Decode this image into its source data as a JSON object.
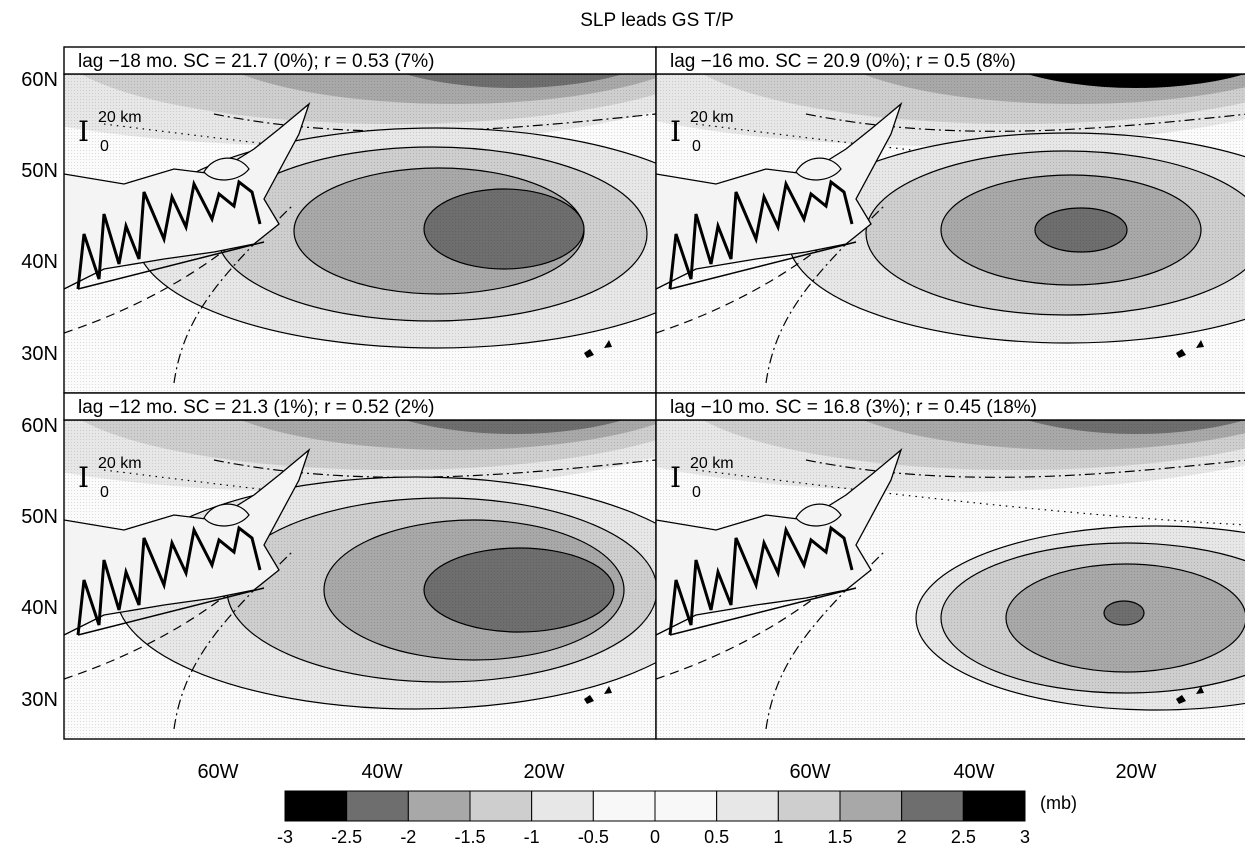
{
  "chart_data": {
    "type": "heatmap",
    "title": "SLP leads GS T/P",
    "x_ticks": [
      "60W",
      "40W",
      "20W"
    ],
    "y_ticks": [
      "60N",
      "50N",
      "40N",
      "30N"
    ],
    "scale_bar": {
      "top": "20 km",
      "bottom": "0"
    },
    "colorbar": {
      "unit": "(mb)",
      "ticks": [
        "-3",
        "-2.5",
        "-2",
        "-1.5",
        "-1",
        "-0.5",
        "0",
        "0.5",
        "1",
        "1.5",
        "2",
        "2.5",
        "3"
      ],
      "range": [
        -3,
        3
      ],
      "step": 0.5,
      "colors": [
        "#000000",
        "#6e6e6e",
        "#a8a8a8",
        "#cecece",
        "#e7e7e7",
        "#f8f8f8",
        "#f8f8f8",
        "#e7e7e7",
        "#cecece",
        "#a8a8a8",
        "#6e6e6e",
        "#000000"
      ]
    },
    "panels": [
      {
        "title": "lag −18 mo. SC = 21.7 (0%); r = 0.53 (7%)",
        "lag": -18,
        "sc": 21.7,
        "sc_sig": "0%",
        "r": 0.53,
        "r_sig": "7%",
        "max_level": 2.5
      },
      {
        "title": "lag −16 mo. SC = 20.9 (0%); r = 0.5 (8%)",
        "lag": -16,
        "sc": 20.9,
        "sc_sig": "0%",
        "r": 0.5,
        "r_sig": "8%",
        "max_level": 2.5
      },
      {
        "title": "lag −12 mo. SC = 21.3 (1%); r = 0.52 (2%)",
        "lag": -12,
        "sc": 21.3,
        "sc_sig": "1%",
        "r": 0.52,
        "r_sig": "2%",
        "max_level": 2.5
      },
      {
        "title": "lag −10 mo. SC = 16.8 (3%); r = 0.45 (18%)",
        "lag": -10,
        "sc": 16.8,
        "sc_sig": "3%",
        "r": 0.45,
        "r_sig": "18%",
        "max_level": 2.5
      }
    ]
  }
}
